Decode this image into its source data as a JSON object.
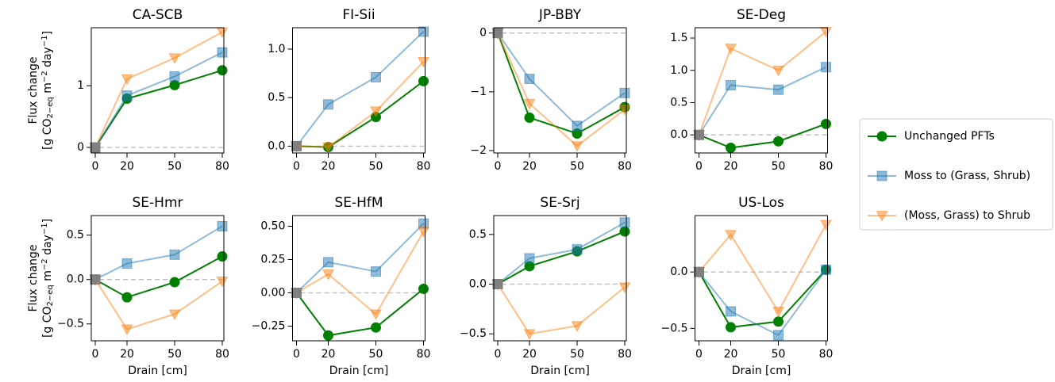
{
  "chart_data": [
    {
      "type": "line",
      "title": "CA-SCB",
      "ylabel": "Flux change",
      "ylabel_units": [
        {
          "text": "[g CO"
        },
        {
          "text": "2−eq",
          "shift": "sub"
        },
        {
          "text": " m"
        },
        {
          "text": "−2",
          "shift": "super"
        },
        {
          "text": " day"
        },
        {
          "text": "−1",
          "shift": "super"
        },
        {
          "text": "]"
        }
      ],
      "x": [
        0,
        20,
        50,
        80
      ],
      "xlim": [
        -2.5,
        81
      ],
      "xticks": [
        0,
        20,
        50,
        80
      ],
      "ylim": [
        -0.09,
        1.94
      ],
      "yticks": [
        0,
        1
      ],
      "zero_line": true,
      "origin_marker_color": "#808080",
      "legend": "right",
      "series": [
        {
          "name": "Unchanged PFTs",
          "color": "#008000",
          "alpha": 1,
          "marker": "circle",
          "values": [
            0,
            0.79,
            1.01,
            1.25
          ]
        },
        {
          "name": "Moss to (Grass, Shrub)",
          "color": "#1f77b4",
          "alpha": 0.5,
          "marker": "square",
          "values": [
            0,
            0.84,
            1.15,
            1.54
          ]
        },
        {
          "name": "(Moss, Grass) to Shrub",
          "color": "#ff7f0e",
          "alpha": 0.5,
          "marker": "triangle-down",
          "values": [
            0,
            1.11,
            1.45,
            1.87
          ]
        }
      ]
    },
    {
      "type": "line",
      "title": "FI-Sii",
      "x": [
        0,
        20,
        50,
        80
      ],
      "xlim": [
        -2.5,
        81
      ],
      "xticks": [
        0,
        20,
        50,
        80
      ],
      "ylim": [
        -0.07,
        1.22
      ],
      "yticks": [
        {
          "value": 0,
          "label": "0.0"
        },
        0.5,
        {
          "value": 1,
          "label": "1.0"
        }
      ],
      "zero_line": true,
      "origin_marker_color": "#808080",
      "series": [
        {
          "color": "#008000",
          "alpha": 1,
          "marker": "circle",
          "values": [
            0,
            -0.01,
            0.3,
            0.67
          ]
        },
        {
          "color": "#1f77b4",
          "alpha": 0.5,
          "marker": "square",
          "values": [
            0,
            0.43,
            0.71,
            1.18
          ]
        },
        {
          "color": "#ff7f0e",
          "alpha": 0.5,
          "marker": "triangle-down",
          "values": [
            0,
            -0.01,
            0.36,
            0.87
          ]
        }
      ]
    },
    {
      "type": "line",
      "title": "JP-BBY",
      "x": [
        0,
        20,
        50,
        80
      ],
      "xlim": [
        -2.5,
        81
      ],
      "xticks": [
        0,
        20,
        50,
        80
      ],
      "ylim": [
        -2.04,
        0.09
      ],
      "yticks": [
        {
          "value": -2,
          "label": "−2"
        },
        {
          "value": -1,
          "label": "−1"
        },
        0
      ],
      "zero_line": true,
      "origin_marker_color": "#808080",
      "series": [
        {
          "color": "#008000",
          "alpha": 1,
          "marker": "circle",
          "values": [
            0,
            -1.44,
            -1.71,
            -1.26
          ]
        },
        {
          "color": "#1f77b4",
          "alpha": 0.5,
          "marker": "square",
          "values": [
            0,
            -0.78,
            -1.58,
            -1.02
          ]
        },
        {
          "color": "#ff7f0e",
          "alpha": 0.5,
          "marker": "triangle-down",
          "values": [
            0,
            -1.2,
            -1.92,
            -1.3
          ]
        }
      ]
    },
    {
      "type": "line",
      "title": "SE-Deg",
      "x": [
        0,
        20,
        50,
        80
      ],
      "xlim": [
        -2.5,
        81
      ],
      "xticks": [
        0,
        20,
        50,
        80
      ],
      "ylim": [
        -0.28,
        1.66
      ],
      "yticks": [
        {
          "value": 0,
          "label": "0.0"
        },
        0.5,
        {
          "value": 1,
          "label": "1.0"
        },
        1.5
      ],
      "zero_line": true,
      "origin_marker_color": "#808080",
      "series": [
        {
          "color": "#008000",
          "alpha": 1,
          "marker": "circle",
          "values": [
            0,
            -0.2,
            -0.1,
            0.17
          ]
        },
        {
          "color": "#1f77b4",
          "alpha": 0.5,
          "marker": "square",
          "values": [
            0,
            0.77,
            0.7,
            1.05
          ]
        },
        {
          "color": "#ff7f0e",
          "alpha": 0.5,
          "marker": "triangle-down",
          "values": [
            0,
            1.34,
            1.0,
            1.6
          ]
        }
      ]
    },
    {
      "type": "line",
      "title": "SE-Hmr",
      "ylabel": "Flux change",
      "ylabel_units": [
        {
          "text": "[g CO"
        },
        {
          "text": "2−eq",
          "shift": "sub"
        },
        {
          "text": " m"
        },
        {
          "text": "−2",
          "shift": "super"
        },
        {
          "text": " day"
        },
        {
          "text": "−1",
          "shift": "super"
        },
        {
          "text": "]"
        }
      ],
      "xlabel": "Drain [cm]",
      "x": [
        0,
        20,
        50,
        80
      ],
      "xlim": [
        -2.5,
        81
      ],
      "xticks": [
        0,
        20,
        50,
        80
      ],
      "ylim": [
        -0.69,
        0.72
      ],
      "yticks": [
        {
          "value": -0.5,
          "label": "−0.5"
        },
        {
          "value": 0,
          "label": "0.0"
        },
        0.5
      ],
      "zero_line": true,
      "origin_marker_color": "#808080",
      "series": [
        {
          "color": "#008000",
          "alpha": 1,
          "marker": "circle",
          "values": [
            0,
            -0.2,
            -0.03,
            0.26
          ]
        },
        {
          "color": "#1f77b4",
          "alpha": 0.5,
          "marker": "square",
          "values": [
            0,
            0.18,
            0.28,
            0.6
          ]
        },
        {
          "color": "#ff7f0e",
          "alpha": 0.5,
          "marker": "triangle-down",
          "values": [
            0,
            -0.56,
            -0.39,
            -0.02
          ]
        }
      ]
    },
    {
      "type": "line",
      "title": "SE-HfM",
      "xlabel": "Drain [cm]",
      "x": [
        0,
        20,
        50,
        80
      ],
      "xlim": [
        -2.5,
        81
      ],
      "xticks": [
        0,
        20,
        50,
        80
      ],
      "ylim": [
        -0.36,
        0.58
      ],
      "yticks": [
        {
          "value": -0.25,
          "label": "−0.25"
        },
        {
          "value": 0,
          "label": "0.00"
        },
        0.25,
        {
          "value": 0.5,
          "label": "0.50"
        }
      ],
      "zero_line": true,
      "origin_marker_color": "#808080",
      "series": [
        {
          "color": "#008000",
          "alpha": 1,
          "marker": "circle",
          "values": [
            0,
            -0.32,
            -0.26,
            0.03
          ]
        },
        {
          "color": "#1f77b4",
          "alpha": 0.5,
          "marker": "square",
          "values": [
            0,
            0.23,
            0.16,
            0.52
          ]
        },
        {
          "color": "#ff7f0e",
          "alpha": 0.5,
          "marker": "triangle-down",
          "values": [
            0,
            0.14,
            -0.16,
            0.46
          ]
        }
      ]
    },
    {
      "type": "line",
      "title": "SE-Srj",
      "xlabel": "Drain [cm]",
      "x": [
        0,
        20,
        50,
        80
      ],
      "xlim": [
        -2.5,
        81
      ],
      "xticks": [
        0,
        20,
        50,
        80
      ],
      "ylim": [
        -0.57,
        0.69
      ],
      "yticks": [
        {
          "value": -0.5,
          "label": "−0.5"
        },
        {
          "value": 0,
          "label": "0.0"
        },
        0.5
      ],
      "zero_line": true,
      "origin_marker_color": "#808080",
      "series": [
        {
          "color": "#008000",
          "alpha": 1,
          "marker": "circle",
          "values": [
            0,
            0.18,
            0.33,
            0.53
          ]
        },
        {
          "color": "#1f77b4",
          "alpha": 0.5,
          "marker": "square",
          "values": [
            0,
            0.26,
            0.35,
            0.62
          ]
        },
        {
          "color": "#ff7f0e",
          "alpha": 0.5,
          "marker": "triangle-down",
          "values": [
            0,
            -0.5,
            -0.42,
            -0.03
          ]
        }
      ]
    },
    {
      "type": "line",
      "title": "US-Los",
      "xlabel": "Drain [cm]",
      "x": [
        0,
        20,
        50,
        80
      ],
      "xlim": [
        -2.5,
        81
      ],
      "xticks": [
        0,
        20,
        50,
        80
      ],
      "ylim": [
        -0.61,
        0.5
      ],
      "yticks": [
        {
          "value": -0.5,
          "label": "−0.5"
        },
        {
          "value": 0,
          "label": "0.0"
        }
      ],
      "zero_line": true,
      "origin_marker_color": "#808080",
      "series": [
        {
          "color": "#008000",
          "alpha": 1,
          "marker": "circle",
          "values": [
            0,
            -0.49,
            -0.44,
            0.02
          ]
        },
        {
          "color": "#1f77b4",
          "alpha": 0.5,
          "marker": "square",
          "values": [
            0,
            -0.35,
            -0.56,
            0.02
          ]
        },
        {
          "color": "#ff7f0e",
          "alpha": 0.5,
          "marker": "triangle-down",
          "values": [
            0,
            0.33,
            -0.35,
            0.42
          ]
        }
      ]
    }
  ]
}
